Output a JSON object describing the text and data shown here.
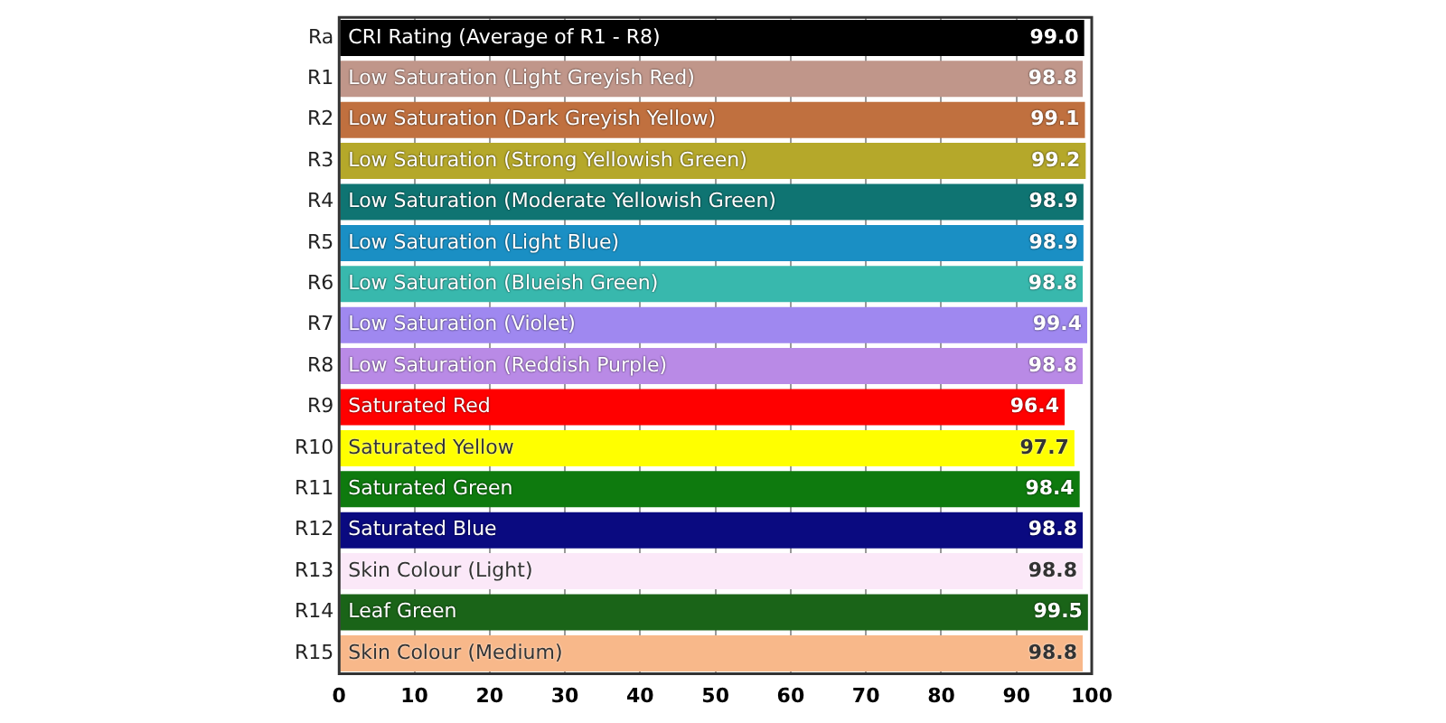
{
  "chart_data": {
    "type": "bar",
    "orientation": "horizontal",
    "categories": [
      "Ra",
      "R1",
      "R2",
      "R3",
      "R4",
      "R5",
      "R6",
      "R7",
      "R8",
      "R9",
      "R10",
      "R11",
      "R12",
      "R13",
      "R14",
      "R15"
    ],
    "values": [
      99.0,
      98.8,
      99.1,
      99.2,
      98.9,
      98.9,
      98.8,
      99.4,
      98.8,
      96.4,
      97.7,
      98.4,
      98.8,
      98.8,
      99.5,
      98.8
    ],
    "value_labels": [
      "99.0",
      "98.8",
      "99.1",
      "99.2",
      "98.9",
      "98.9",
      "98.8",
      "99.4",
      "98.8",
      "96.4",
      "97.7",
      "98.4",
      "98.8",
      "98.8",
      "99.5",
      "98.8"
    ],
    "colors": [
      "#000000",
      "#c0968a",
      "#c0703f",
      "#b5a82a",
      "#0f7472",
      "#1a8fc4",
      "#38b8ad",
      "#9f88f0",
      "#b98ae6",
      "#ff0000",
      "#ffff00",
      "#0e7a0e",
      "#0a0a80",
      "#fbe8f8",
      "#1a6418",
      "#f8b88a"
    ],
    "xlim": [
      0,
      100
    ],
    "xticks": [
      0,
      10,
      20,
      30,
      40,
      50,
      60,
      70,
      80,
      90,
      100
    ],
    "grid": "x",
    "legend": false,
    "annotations": [
      {
        "text": "CRI Rating (Average of R1 - R8)",
        "y": "Ra"
      },
      {
        "text": "Low Saturation (Light Greyish Red)",
        "y": "R1"
      },
      {
        "text": "Low Saturation (Dark Greyish Yellow)",
        "y": "R2"
      },
      {
        "text": "Low Saturation (Strong Yellowish Green)",
        "y": "R3"
      },
      {
        "text": "Low Saturation (Moderate Yellowish Green)",
        "y": "R4"
      },
      {
        "text": "Low Saturation (Light Blue)",
        "y": "R5"
      },
      {
        "text": "Low Saturation (Blueish Green)",
        "y": "R6"
      },
      {
        "text": "Low Saturation (Violet)",
        "y": "R7"
      },
      {
        "text": "Low Saturation (Reddish Purple)",
        "y": "R8"
      },
      {
        "text": "Saturated Red",
        "y": "R9"
      },
      {
        "text": "Saturated Yellow",
        "y": "R10"
      },
      {
        "text": "Saturated Green",
        "y": "R11"
      },
      {
        "text": "Saturated Blue",
        "y": "R12"
      },
      {
        "text": "Skin Colour (Light)",
        "y": "R13"
      },
      {
        "text": "Leaf Green",
        "y": "R14"
      },
      {
        "text": "Skin Colour (Medium)",
        "y": "R15"
      }
    ]
  }
}
